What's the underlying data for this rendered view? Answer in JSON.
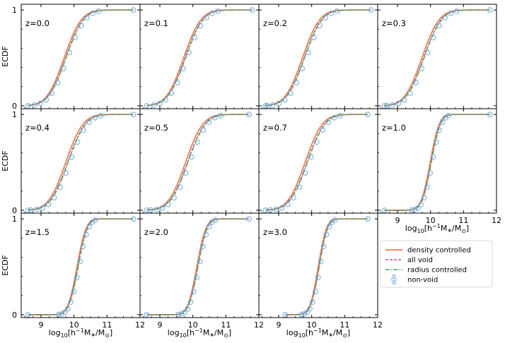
{
  "figure": {
    "ylabel": "ECDF",
    "xlabel_parts": {
      "pre": "log",
      "sub10": "10",
      "open": "[h",
      "supm1": "−1",
      "mid": "M",
      "subst": "∗",
      "slash": "/M",
      "subsun": "⊙",
      "close": "]"
    }
  },
  "chart_data": {
    "type": "line",
    "title": "",
    "xlabel": "log10[h^-1 M*/Msun]",
    "ylabel": "ECDF",
    "xlim": [
      8.4,
      12.0
    ],
    "ylim": [
      -0.03,
      1.06
    ],
    "xticks": [
      "9",
      "10",
      "11",
      "12"
    ],
    "yticks": [
      "0",
      "1"
    ],
    "legend": {
      "placement": "lower-right (empty panel)",
      "entries": [
        {
          "name": "density controlled",
          "color": "#f07e4f",
          "style": "solid"
        },
        {
          "name": "all void",
          "color": "#c0569a",
          "style": "dashed"
        },
        {
          "name": "radius controlled",
          "color": "#3fa55c",
          "style": "dashdot"
        },
        {
          "name": "non-void",
          "color": "#6fa6dc",
          "style": "circle markers with error bars"
        }
      ]
    },
    "panels": [
      {
        "z_label": "z=0.0",
        "xmin": 8.6,
        "xmax": 11.8,
        "median": 9.8,
        "width": 0.42,
        "shift": 0.1
      },
      {
        "z_label": "z=0.1",
        "xmin": 8.6,
        "xmax": 11.8,
        "median": 9.82,
        "width": 0.42,
        "shift": 0.1
      },
      {
        "z_label": "z=0.2",
        "xmin": 8.6,
        "xmax": 11.8,
        "median": 9.83,
        "width": 0.42,
        "shift": 0.11
      },
      {
        "z_label": "z=0.3",
        "xmin": 8.6,
        "xmax": 11.8,
        "median": 9.85,
        "width": 0.42,
        "shift": 0.11
      },
      {
        "z_label": "z=0.4",
        "xmin": 8.6,
        "xmax": 11.8,
        "median": 9.87,
        "width": 0.42,
        "shift": 0.12
      },
      {
        "z_label": "z=0.5",
        "xmin": 8.6,
        "xmax": 11.7,
        "median": 9.9,
        "width": 0.42,
        "shift": 0.12
      },
      {
        "z_label": "z=0.7",
        "xmin": 8.6,
        "xmax": 11.7,
        "median": 9.92,
        "width": 0.42,
        "shift": 0.12
      },
      {
        "z_label": "z=1.0",
        "xmin": 8.6,
        "xmax": 11.8,
        "median": 10.05,
        "width": 0.22,
        "shift": 0.06
      },
      {
        "z_label": "z=1.5",
        "xmin": 8.6,
        "xmax": 11.8,
        "median": 10.15,
        "width": 0.22,
        "shift": 0.06
      },
      {
        "z_label": "z=2.0",
        "xmin": 8.6,
        "xmax": 11.7,
        "median": 10.18,
        "width": 0.22,
        "shift": 0.06
      },
      {
        "z_label": "z=3.0",
        "xmin": 9.2,
        "xmax": 11.7,
        "median": 10.25,
        "width": 0.2,
        "shift": 0.05
      }
    ]
  }
}
